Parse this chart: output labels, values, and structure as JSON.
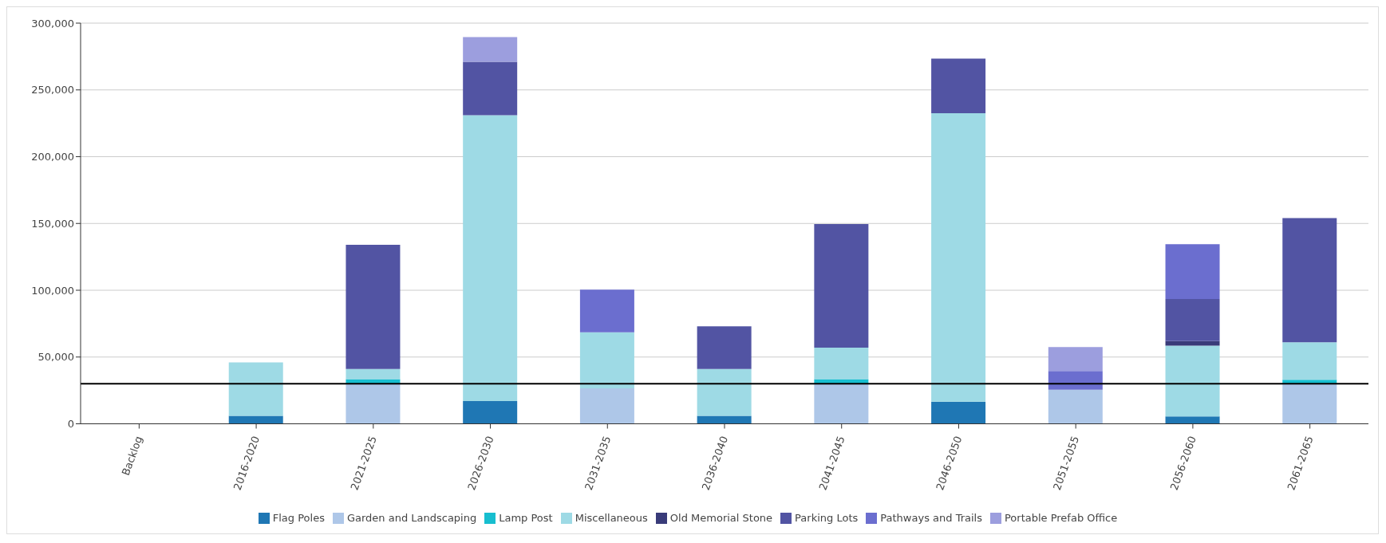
{
  "chart_data": {
    "type": "bar",
    "stacked": true,
    "categories": [
      "Backlog",
      "2016-2020",
      "2021-2025",
      "2026-2030",
      "2031-2035",
      "2036-2040",
      "2041-2045",
      "2046-2050",
      "2051-2055",
      "2056-2060",
      "2061-2065"
    ],
    "series": [
      {
        "name": "Flag Poles",
        "color": "#1f77b4",
        "values": [
          null,
          6000,
          null,
          17000,
          null,
          6000,
          null,
          16500,
          null,
          5500,
          null
        ]
      },
      {
        "name": "Garden and Landscaping",
        "color": "#aec7e8",
        "values": [
          null,
          null,
          30000,
          null,
          26500,
          null,
          30000,
          null,
          25500,
          null,
          30000
        ]
      },
      {
        "name": "Lamp Post",
        "color": "#17becf",
        "values": [
          null,
          null,
          3500,
          null,
          null,
          null,
          3500,
          null,
          null,
          null,
          3000
        ]
      },
      {
        "name": "Miscellaneous",
        "color": "#9edae5",
        "values": [
          null,
          40000,
          7500,
          214000,
          42000,
          35000,
          23500,
          216000,
          null,
          53000,
          28000
        ]
      },
      {
        "name": "Old Memorial Stone",
        "color": "#393b79",
        "values": [
          null,
          null,
          null,
          null,
          null,
          null,
          null,
          null,
          null,
          3500,
          null
        ]
      },
      {
        "name": "Parking Lots",
        "color": "#5254a3",
        "values": [
          null,
          null,
          93000,
          40000,
          null,
          32000,
          92500,
          41000,
          null,
          31500,
          93000
        ]
      },
      {
        "name": "Pathways and Trails",
        "color": "#6b6ecf",
        "values": [
          null,
          null,
          null,
          null,
          32000,
          null,
          null,
          null,
          14000,
          41000,
          null
        ]
      },
      {
        "name": "Portable Prefab Office",
        "color": "#9c9ede",
        "values": [
          null,
          null,
          null,
          18500,
          null,
          null,
          null,
          null,
          18000,
          null,
          null
        ]
      }
    ],
    "ylim": [
      0,
      300000
    ],
    "yticks": [
      0,
      {
        "value": 50000,
        "label": "50,000"
      },
      {
        "value": 100000,
        "label": "100,000"
      },
      {
        "value": 150000,
        "label": "150,000"
      },
      {
        "value": 200000,
        "label": "200,000"
      },
      {
        "value": 250000,
        "label": "250,000"
      },
      {
        "value": 300000,
        "label": "300,000"
      }
    ],
    "ref_lines": [
      {
        "axis": "y",
        "value": 30000,
        "color": "#000000"
      }
    ],
    "grid": "y",
    "legend": "bottom"
  }
}
